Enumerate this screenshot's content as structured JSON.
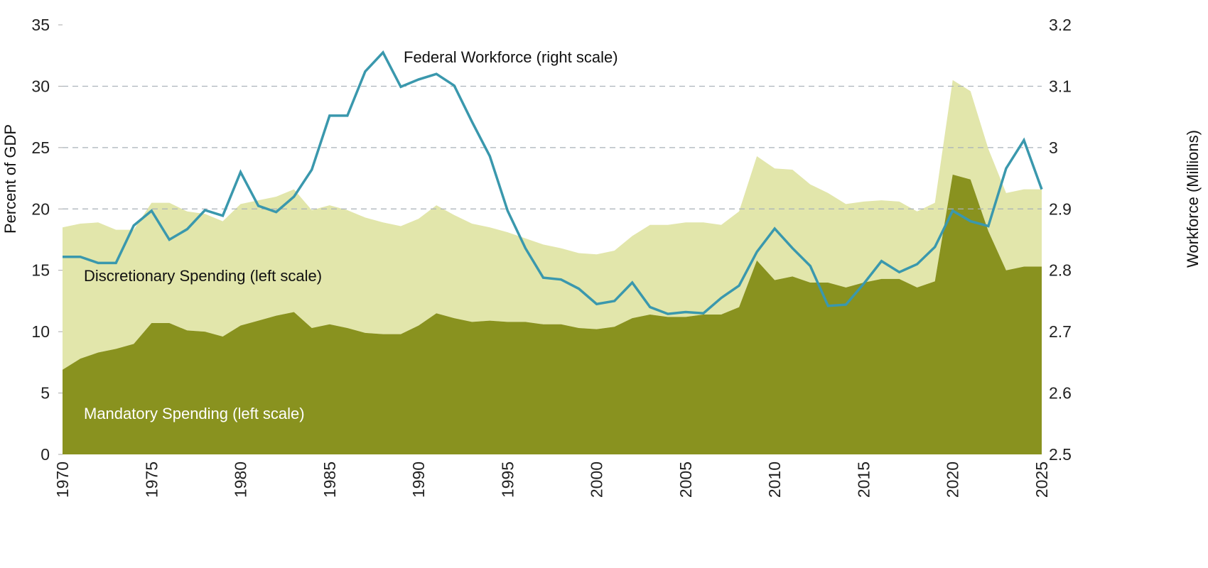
{
  "chart_data": {
    "type": "area",
    "title": "",
    "xlabel": "",
    "ylabel_left": "Percent of GDP",
    "ylabel_right": "Workforce (Millions)",
    "xlim": [
      1970,
      2025
    ],
    "ylim_left": [
      0,
      35
    ],
    "ylim_right": [
      2.5,
      3.2
    ],
    "x_ticks": [
      1970,
      1975,
      1980,
      1985,
      1990,
      1995,
      2000,
      2005,
      2010,
      2015,
      2020,
      2025
    ],
    "y_ticks_left": [
      0,
      5,
      10,
      15,
      20,
      25,
      30,
      35
    ],
    "y_ticks_right": [
      "2.5",
      "2.6",
      "2.7",
      "2.8",
      "2.9",
      "3",
      "3.1",
      "3.2"
    ],
    "grid": "dashed horizontal at 20, 25, 30",
    "legend": "inline labels",
    "colors": {
      "mandatory": "#89921f",
      "discretionary": "#e2e6ab",
      "workforce": "#3a98ad",
      "grid": "#a8b0b8"
    },
    "x": [
      1970,
      1971,
      1972,
      1973,
      1974,
      1975,
      1976,
      1977,
      1978,
      1979,
      1980,
      1981,
      1982,
      1983,
      1984,
      1985,
      1986,
      1987,
      1988,
      1989,
      1990,
      1991,
      1992,
      1993,
      1994,
      1995,
      1996,
      1997,
      1998,
      1999,
      2000,
      2001,
      2002,
      2003,
      2004,
      2005,
      2006,
      2007,
      2008,
      2009,
      2010,
      2011,
      2012,
      2013,
      2014,
      2015,
      2016,
      2017,
      2018,
      2019,
      2020,
      2021,
      2022,
      2023,
      2024,
      2025
    ],
    "series": [
      {
        "name": "Mandatory Spending (left scale)",
        "axis": "left",
        "stack": "base",
        "values": [
          6.9,
          7.8,
          8.3,
          8.6,
          9.0,
          10.7,
          10.7,
          10.1,
          10.0,
          9.6,
          10.5,
          10.9,
          11.3,
          11.6,
          10.3,
          10.6,
          10.3,
          9.9,
          9.8,
          9.8,
          10.5,
          11.5,
          11.1,
          10.8,
          10.9,
          10.8,
          10.8,
          10.6,
          10.6,
          10.3,
          10.2,
          10.4,
          11.1,
          11.4,
          11.2,
          11.2,
          11.4,
          11.4,
          12.0,
          15.8,
          14.2,
          14.5,
          14.0,
          14.0,
          13.6,
          14.0,
          14.3,
          14.3,
          13.6,
          14.1,
          22.8,
          22.4,
          18.2,
          15.0,
          15.3,
          15.3
        ]
      },
      {
        "name": "Discretionary Spending (left scale)",
        "axis": "left",
        "stack": "on-mandatory",
        "values": [
          11.6,
          11.0,
          10.6,
          9.7,
          9.3,
          9.8,
          9.8,
          9.7,
          9.6,
          9.4,
          9.9,
          9.8,
          9.7,
          10.0,
          9.6,
          9.7,
          9.6,
          9.4,
          9.1,
          8.8,
          8.7,
          8.8,
          8.4,
          8.0,
          7.6,
          7.3,
          6.8,
          6.5,
          6.2,
          6.1,
          6.1,
          6.2,
          6.7,
          7.3,
          7.5,
          7.7,
          7.5,
          7.3,
          7.8,
          8.5,
          9.1,
          8.7,
          8.0,
          7.3,
          6.8,
          6.6,
          6.4,
          6.3,
          6.2,
          6.4,
          7.7,
          7.2,
          6.7,
          6.3,
          6.3,
          6.3
        ]
      },
      {
        "name": "Federal Workforce (right scale)",
        "axis": "right",
        "type": "line",
        "values": [
          2.822,
          2.822,
          2.812,
          2.812,
          2.873,
          2.897,
          2.85,
          2.867,
          2.898,
          2.889,
          2.96,
          2.905,
          2.895,
          2.92,
          2.964,
          3.052,
          3.052,
          3.124,
          3.155,
          3.099,
          3.111,
          3.12,
          3.101,
          3.042,
          2.986,
          2.897,
          2.836,
          2.788,
          2.785,
          2.77,
          2.745,
          2.75,
          2.78,
          2.74,
          2.729,
          2.732,
          2.73,
          2.755,
          2.775,
          2.83,
          2.868,
          2.836,
          2.807,
          2.742,
          2.744,
          2.778,
          2.815,
          2.797,
          2.81,
          2.838,
          2.897,
          2.88,
          2.872,
          2.966,
          3.012,
          2.932
        ]
      }
    ]
  }
}
